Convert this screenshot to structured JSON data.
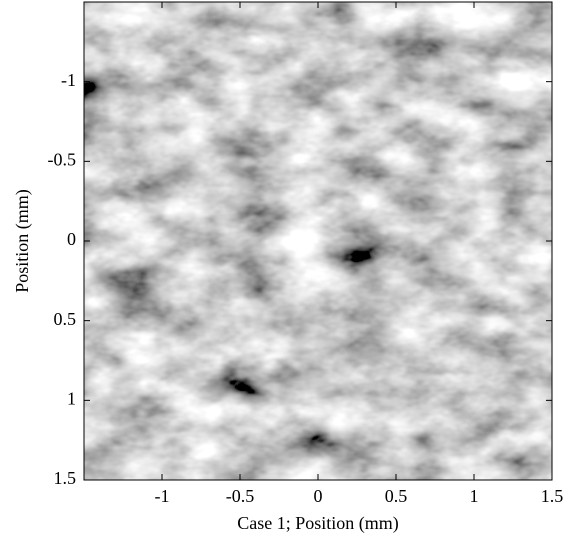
{
  "chart_data": {
    "type": "image",
    "colormap": "gray",
    "xlabel": "Case 1; Position (mm)",
    "ylabel": "Position (mm)",
    "xlim": [
      -1.5,
      1.5
    ],
    "ylim": [
      -1.5,
      1.5
    ],
    "y_reversed": true,
    "xticks": [
      -1,
      -0.5,
      0,
      0.5,
      1,
      1.5
    ],
    "yticks": [
      -1,
      -0.5,
      0,
      0.5,
      1,
      1.5
    ]
  }
}
